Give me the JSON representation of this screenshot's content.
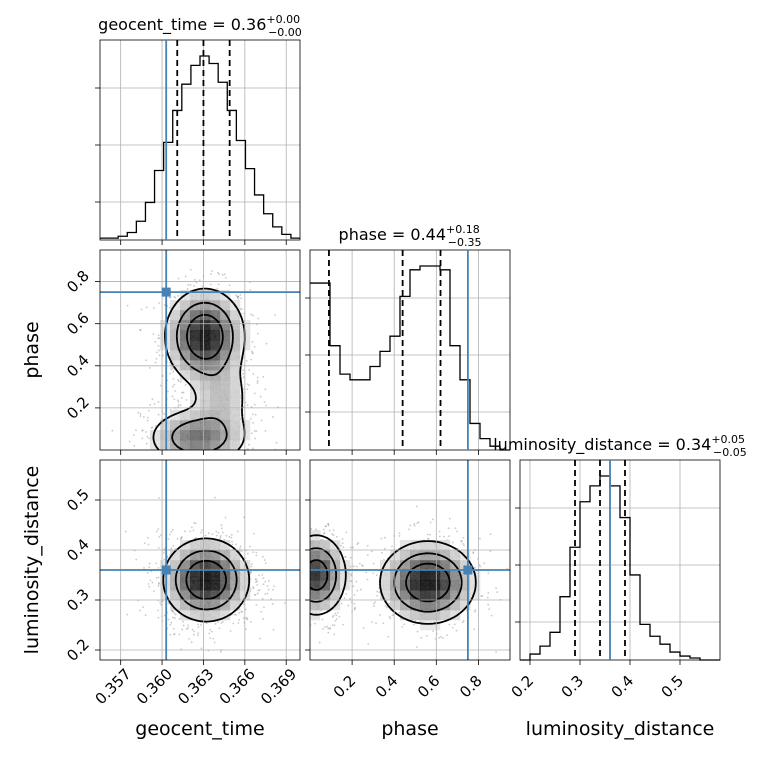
{
  "chart_data": {
    "type": "corner",
    "truth_color": "#4682b4",
    "parameters": [
      {
        "name": "geocent_time",
        "label": "geocent_time",
        "range": [
          0.3555,
          0.37
        ],
        "ticks": [
          0.357,
          0.36,
          0.363,
          0.366,
          0.369
        ],
        "tick_labels": [
          "0.357",
          "0.360",
          "0.363",
          "0.366",
          "0.369"
        ],
        "truth": 0.3603,
        "quantiles": [
          0.3611,
          0.363,
          0.3649
        ],
        "title_main": "geocent_time = 0.36",
        "title_sup": "+0.00",
        "title_sub": "−0.00",
        "hist": [
          0.01,
          0.01,
          0.02,
          0.04,
          0.1,
          0.2,
          0.37,
          0.52,
          0.69,
          0.83,
          0.93,
          0.98,
          0.94,
          0.84,
          0.69,
          0.53,
          0.38,
          0.24,
          0.14,
          0.07,
          0.03,
          0.01
        ]
      },
      {
        "name": "phase",
        "label": "phase",
        "range": [
          0.0,
          0.95
        ],
        "ticks": [
          0.2,
          0.4,
          0.6,
          0.8
        ],
        "tick_labels": [
          "0.2",
          "0.4",
          "0.6",
          "0.8"
        ],
        "truth": 0.75,
        "quantiles": [
          0.09,
          0.44,
          0.62
        ],
        "title_main": "phase = 0.44",
        "title_sup": "+0.18",
        "title_sub": "−0.35",
        "hist": [
          0.88,
          0.88,
          0.55,
          0.4,
          0.37,
          0.37,
          0.44,
          0.52,
          0.6,
          0.81,
          0.95,
          0.97,
          0.97,
          0.95,
          0.55,
          0.37,
          0.14,
          0.06,
          0.02,
          0.0
        ]
      },
      {
        "name": "luminosity_distance",
        "label": "luminosity_distance",
        "range": [
          0.18,
          0.58
        ],
        "ticks": [
          0.2,
          0.3,
          0.4,
          0.5
        ],
        "tick_labels": [
          "0.2",
          "0.3",
          "0.4",
          "0.5"
        ],
        "truth": 0.36,
        "quantiles": [
          0.29,
          0.34,
          0.39
        ],
        "title_main": "luminosity_distance = 0.34",
        "title_sup": "+0.05",
        "title_sub": "−0.05",
        "hist": [
          0.0,
          0.03,
          0.07,
          0.14,
          0.32,
          0.57,
          0.8,
          0.88,
          0.93,
          0.88,
          0.72,
          0.43,
          0.18,
          0.12,
          0.08,
          0.04,
          0.02,
          0.01,
          0.0,
          0.0
        ]
      }
    ],
    "pair_panels": [
      {
        "x": "geocent_time",
        "y": "phase",
        "blobs": [
          {
            "cx": 0.3631,
            "cy": 0.54,
            "sx": 0.0014,
            "sy": 0.11,
            "w": 1.0
          },
          {
            "cx": 0.3626,
            "cy": 0.06,
            "sx": 0.0018,
            "sy": 0.07,
            "w": 0.6
          },
          {
            "cx": 0.3643,
            "cy": 0.25,
            "sx": 0.0012,
            "sy": 0.1,
            "w": 0.25
          }
        ],
        "contour_levels": [
          0.12,
          0.35,
          0.65
        ]
      },
      {
        "x": "geocent_time",
        "y": "luminosity_distance",
        "blobs": [
          {
            "cx": 0.3632,
            "cy": 0.34,
            "sx": 0.0015,
            "sy": 0.04,
            "w": 1.0
          }
        ],
        "contour_levels": [
          0.12,
          0.35,
          0.65
        ]
      },
      {
        "x": "phase",
        "y": "luminosity_distance",
        "blobs": [
          {
            "cx": 0.56,
            "cy": 0.335,
            "sx": 0.11,
            "sy": 0.04,
            "w": 1.0
          },
          {
            "cx": 0.03,
            "cy": 0.35,
            "sx": 0.07,
            "sy": 0.04,
            "w": 0.85
          }
        ],
        "contour_levels": [
          0.12,
          0.35,
          0.65
        ]
      }
    ]
  }
}
